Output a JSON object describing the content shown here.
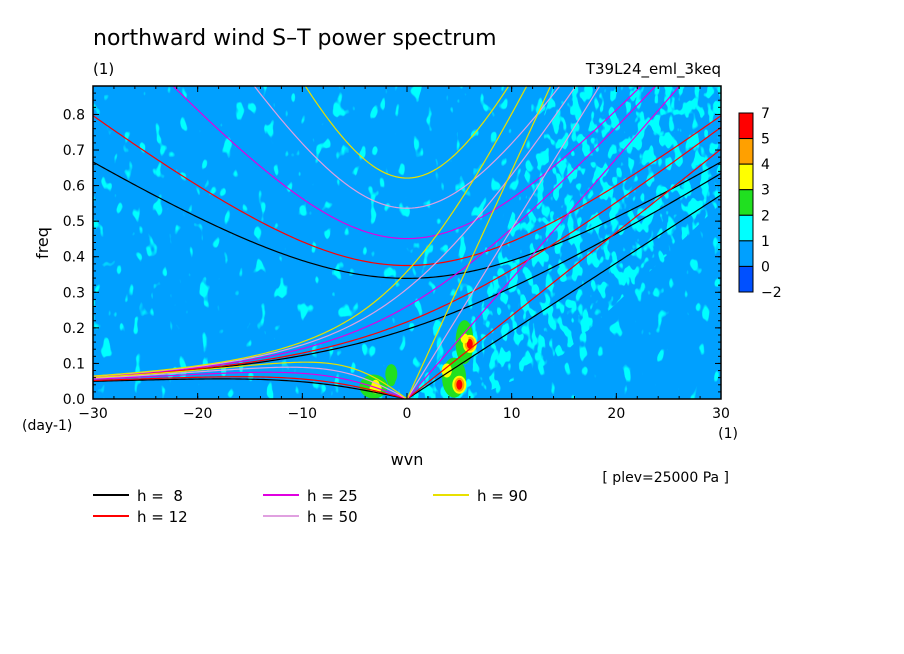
{
  "chart_data": {
    "type": "heatmap",
    "title": "northward wind S–T power spectrum",
    "subtitle_left": "(1)",
    "subtitle_right": "T39L24_eml_3keq",
    "xlabel": "wvn",
    "ylabel": "freq",
    "x_unit": "(1)",
    "y_unit": "(day-1)",
    "xlim": [
      -30,
      30
    ],
    "ylim": [
      0,
      0.88
    ],
    "x_ticks": [
      "−30",
      "−20",
      "−10",
      "0",
      "10",
      "20",
      "30"
    ],
    "x_tick_values": [
      -30,
      -20,
      -10,
      0,
      10,
      20,
      30
    ],
    "y_ticks": [
      "0.0",
      "0.1",
      "0.2",
      "0.3",
      "0.4",
      "0.5",
      "0.6",
      "0.7",
      "0.8"
    ],
    "y_tick_values": [
      0.0,
      0.1,
      0.2,
      0.3,
      0.4,
      0.5,
      0.6,
      0.7,
      0.8
    ],
    "note": "[ plev=25000 Pa ]",
    "colorbar": {
      "labels": [
        "7",
        "5",
        "4",
        "3",
        "2",
        "1",
        "0",
        "−2"
      ],
      "levels": [
        {
          "from": 5,
          "to": 7,
          "color": "#ff0000"
        },
        {
          "from": 4,
          "to": 5,
          "color": "#ffa000"
        },
        {
          "from": 3,
          "to": 4,
          "color": "#ffff00"
        },
        {
          "from": 2,
          "to": 3,
          "color": "#20e020"
        },
        {
          "from": 1,
          "to": 2,
          "color": "#00ffff"
        },
        {
          "from": 0,
          "to": 1,
          "color": "#00a0ff"
        },
        {
          "from": -2,
          "to": 0,
          "color": "#0050ff"
        }
      ]
    },
    "field_features": [
      {
        "x": 6.0,
        "y": 0.155,
        "level": 7
      },
      {
        "x": 5.0,
        "y": 0.04,
        "level": 7
      },
      {
        "x": 5.5,
        "y": 0.17,
        "level": 3
      },
      {
        "x": -3.0,
        "y": 0.04,
        "level": 3
      },
      {
        "x": -1.5,
        "y": 0.05,
        "level": 2
      }
    ],
    "dispersion_curves": [
      {
        "label": "h =  8",
        "h": 8,
        "color": "#000000"
      },
      {
        "label": "h = 12",
        "h": 12,
        "color": "#ff0000"
      },
      {
        "label": "h = 25",
        "h": 25,
        "color": "#e000e0"
      },
      {
        "label": "h = 50",
        "h": 50,
        "color": "#e0a0e0"
      },
      {
        "label": "h = 90",
        "h": 90,
        "color": "#e8e000"
      }
    ]
  }
}
